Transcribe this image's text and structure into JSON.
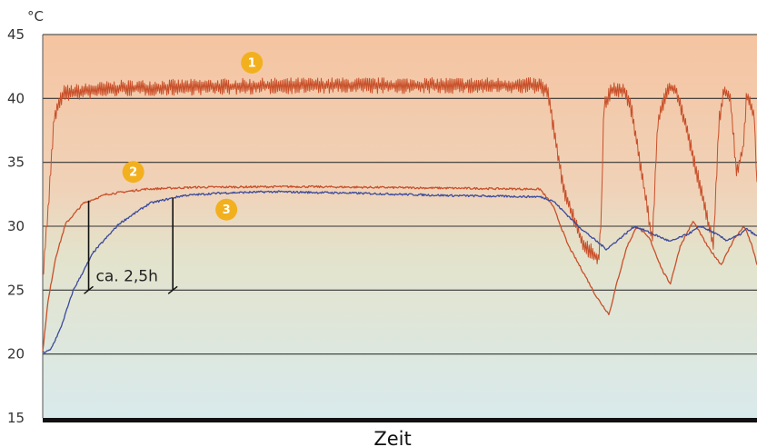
{
  "chart_data": {
    "type": "line",
    "title": "",
    "xlabel": "Zeit",
    "ylabel": "°C",
    "ylim": [
      15,
      45
    ],
    "y_ticks": [
      15,
      20,
      25,
      30,
      35,
      40,
      45
    ],
    "grid": true,
    "background_gradient": [
      "#f5c4a1",
      "#d9eaec"
    ],
    "x_units": "h",
    "xlim": [
      0,
      28
    ],
    "series": [
      {
        "marker": "1",
        "color": "#c8502a",
        "noise": 0.45,
        "points": [
          [
            0,
            26
          ],
          [
            0.2,
            31
          ],
          [
            0.45,
            38.5
          ],
          [
            0.8,
            40.4
          ],
          [
            3,
            40.8
          ],
          [
            10,
            41
          ],
          [
            19.5,
            41
          ],
          [
            19.8,
            40.5
          ],
          [
            20.4,
            33
          ],
          [
            21.2,
            28.5
          ],
          [
            21.8,
            27.5
          ],
          [
            21.9,
            31
          ],
          [
            22,
            39.5
          ],
          [
            22.3,
            40.6
          ],
          [
            22.8,
            40.6
          ],
          [
            23.1,
            39
          ],
          [
            23.9,
            28.8
          ],
          [
            24.1,
            38
          ],
          [
            24.5,
            40.8
          ],
          [
            24.8,
            40.8
          ],
          [
            25.2,
            38
          ],
          [
            26.3,
            28.5
          ],
          [
            26.5,
            38
          ],
          [
            26.7,
            40.8
          ],
          [
            26.95,
            40
          ],
          [
            27.2,
            34.2
          ],
          [
            27.45,
            36
          ],
          [
            27.6,
            40.4
          ],
          [
            27.9,
            38.5
          ],
          [
            28,
            33
          ]
        ]
      },
      {
        "marker": "2",
        "color": "#c8502a",
        "noise": 0.08,
        "points": [
          [
            0,
            20.2
          ],
          [
            0.2,
            24
          ],
          [
            0.5,
            27.5
          ],
          [
            0.9,
            30.2
          ],
          [
            1.6,
            31.8
          ],
          [
            2.5,
            32.5
          ],
          [
            4,
            32.9
          ],
          [
            6,
            33.05
          ],
          [
            10,
            33.1
          ],
          [
            15,
            33
          ],
          [
            19.5,
            32.9
          ],
          [
            20,
            31.6
          ],
          [
            20.6,
            28.5
          ],
          [
            21.3,
            26
          ],
          [
            21.7,
            24.5
          ],
          [
            22.2,
            23.1
          ],
          [
            22.5,
            25.5
          ],
          [
            22.9,
            28.4
          ],
          [
            23.3,
            30
          ],
          [
            23.8,
            29
          ],
          [
            24.3,
            26.5
          ],
          [
            24.6,
            25.5
          ],
          [
            25,
            28.5
          ],
          [
            25.5,
            30.4
          ],
          [
            26.1,
            28.3
          ],
          [
            26.6,
            27
          ],
          [
            27.1,
            29
          ],
          [
            27.5,
            30
          ],
          [
            27.8,
            28.5
          ],
          [
            28,
            27
          ]
        ]
      },
      {
        "marker": "3",
        "color": "#3b4a9a",
        "noise": 0.08,
        "points": [
          [
            0,
            20.1
          ],
          [
            0.3,
            20.3
          ],
          [
            0.7,
            22
          ],
          [
            1.2,
            25
          ],
          [
            2,
            28
          ],
          [
            3,
            30.2
          ],
          [
            4.2,
            31.8
          ],
          [
            5.5,
            32.4
          ],
          [
            7,
            32.6
          ],
          [
            9,
            32.7
          ],
          [
            12,
            32.6
          ],
          [
            16,
            32.4
          ],
          [
            19.5,
            32.3
          ],
          [
            20,
            32
          ],
          [
            20.5,
            31
          ],
          [
            21,
            30
          ],
          [
            21.6,
            29
          ],
          [
            22.1,
            28.2
          ],
          [
            22.6,
            29
          ],
          [
            23.2,
            30
          ],
          [
            23.8,
            29.5
          ],
          [
            24.6,
            28.8
          ],
          [
            25.3,
            29.4
          ],
          [
            25.8,
            30
          ],
          [
            26.3,
            29.5
          ],
          [
            26.8,
            28.9
          ],
          [
            27.3,
            29.3
          ],
          [
            27.6,
            29.8
          ],
          [
            28,
            29.2
          ]
        ]
      }
    ],
    "annotation": {
      "text": "ca. 2,5h",
      "x_start": 1.8,
      "x_end": 5.1,
      "y_top_start": 32,
      "y_top_end": 32.2,
      "y_bottom": 25
    }
  }
}
